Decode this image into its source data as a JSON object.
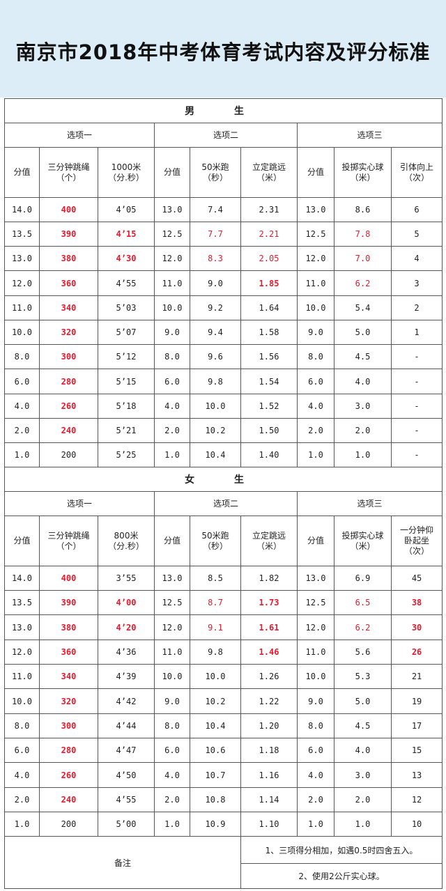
{
  "title": "南京市2018年中考体育考试内容及评分标准",
  "colors": {
    "header_bg": "#dcedf8",
    "highlight_red": "#e8192c"
  },
  "boys": {
    "section": "男 生",
    "options": [
      "选项一",
      "选项二",
      "选项三"
    ],
    "headers": [
      [
        "分值"
      ],
      [
        "三分钟跳绳",
        "（个）"
      ],
      [
        "1000米",
        "（分.秒）"
      ],
      [
        "分值"
      ],
      [
        "50米跑",
        "（秒）"
      ],
      [
        "立定跳远",
        "（米）"
      ],
      [
        "分值"
      ],
      [
        "投掷实心球",
        "（米）"
      ],
      [
        "引体向上",
        "（次）"
      ]
    ],
    "rows": [
      [
        "14.0",
        "400",
        "4’05",
        "13.0",
        "7.4",
        "2.31",
        "13.0",
        "8.6",
        "6"
      ],
      [
        "13.5",
        "390",
        "4’15",
        "12.5",
        "7.7",
        "2.21",
        "12.5",
        "7.8",
        "5"
      ],
      [
        "13.0",
        "380",
        "4’30",
        "12.0",
        "8.3",
        "2.05",
        "12.0",
        "7.0",
        "4"
      ],
      [
        "12.0",
        "360",
        "4’55",
        "11.0",
        "9.0",
        "1.85",
        "11.0",
        "6.2",
        "3"
      ],
      [
        "11.0",
        "340",
        "5’03",
        "10.0",
        "9.2",
        "1.64",
        "10.0",
        "5.4",
        "2"
      ],
      [
        "10.0",
        "320",
        "5’07",
        "9.0",
        "9.4",
        "1.58",
        "9.0",
        "5.0",
        "1"
      ],
      [
        "8.0",
        "300",
        "5’12",
        "8.0",
        "9.6",
        "1.56",
        "8.0",
        "4.5",
        "-"
      ],
      [
        "6.0",
        "280",
        "5’15",
        "6.0",
        "9.8",
        "1.54",
        "6.0",
        "4.0",
        "-"
      ],
      [
        "4.0",
        "260",
        "5’18",
        "4.0",
        "10.0",
        "1.52",
        "4.0",
        "3.0",
        "-"
      ],
      [
        "2.0",
        "240",
        "5’21",
        "2.0",
        "10.2",
        "1.50",
        "2.0",
        "2.0",
        "-"
      ],
      [
        "1.0",
        "200",
        "5’25",
        "1.0",
        "10.4",
        "1.40",
        "1.0",
        "1.0",
        "-"
      ]
    ],
    "red": [
      [
        0,
        1
      ],
      [
        1,
        1
      ],
      [
        2,
        1
      ],
      [
        3,
        1
      ],
      [
        4,
        1
      ],
      [
        5,
        1
      ],
      [
        6,
        1
      ],
      [
        7,
        1
      ],
      [
        8,
        1
      ],
      [
        9,
        1
      ],
      [
        1,
        2
      ],
      [
        2,
        2
      ],
      [
        1,
        4
      ],
      [
        2,
        4
      ],
      [
        1,
        5
      ],
      [
        2,
        5
      ],
      [
        3,
        5
      ],
      [
        1,
        7
      ],
      [
        2,
        7
      ],
      [
        3,
        7
      ]
    ],
    "bold": [
      [
        0,
        1
      ],
      [
        1,
        1
      ],
      [
        2,
        1
      ],
      [
        3,
        1
      ],
      [
        4,
        1
      ],
      [
        5,
        1
      ],
      [
        6,
        1
      ],
      [
        7,
        1
      ],
      [
        8,
        1
      ],
      [
        9,
        1
      ],
      [
        1,
        2
      ],
      [
        2,
        2
      ],
      [
        3,
        5
      ]
    ]
  },
  "girls": {
    "section": "女 生",
    "options": [
      "选项一",
      "选项二",
      "选项三"
    ],
    "headers": [
      [
        "分值"
      ],
      [
        "三分钟跳绳",
        "（个）"
      ],
      [
        "800米",
        "（分.秒）"
      ],
      [
        "分值"
      ],
      [
        "50米跑",
        "（秒）"
      ],
      [
        "立定跳远",
        "（米）"
      ],
      [
        "分值"
      ],
      [
        "投掷实心球",
        "（米）"
      ],
      [
        "一分钟仰",
        "卧起坐",
        "（次）"
      ]
    ],
    "rows": [
      [
        "14.0",
        "400",
        "3’55",
        "13.0",
        "8.5",
        "1.82",
        "13.0",
        "6.9",
        "45"
      ],
      [
        "13.5",
        "390",
        "4’00",
        "12.5",
        "8.7",
        "1.73",
        "12.5",
        "6.5",
        "38"
      ],
      [
        "13.0",
        "380",
        "4’20",
        "12.0",
        "9.1",
        "1.61",
        "12.0",
        "6.2",
        "30"
      ],
      [
        "12.0",
        "360",
        "4’36",
        "11.0",
        "9.8",
        "1.46",
        "11.0",
        "5.6",
        "26"
      ],
      [
        "11.0",
        "340",
        "4’39",
        "10.0",
        "10.0",
        "1.26",
        "10.0",
        "5.3",
        "21"
      ],
      [
        "10.0",
        "320",
        "4’42",
        "9.0",
        "10.2",
        "1.22",
        "9.0",
        "5.0",
        "19"
      ],
      [
        "8.0",
        "300",
        "4’44",
        "8.0",
        "10.4",
        "1.20",
        "8.0",
        "4.5",
        "17"
      ],
      [
        "6.0",
        "280",
        "4’47",
        "6.0",
        "10.6",
        "1.18",
        "6.0",
        "4.0",
        "15"
      ],
      [
        "4.0",
        "260",
        "4’50",
        "4.0",
        "10.7",
        "1.16",
        "4.0",
        "3.0",
        "13"
      ],
      [
        "2.0",
        "240",
        "4’55",
        "2.0",
        "10.8",
        "1.14",
        "2.0",
        "2.0",
        "12"
      ],
      [
        "1.0",
        "200",
        "5’00",
        "1.0",
        "10.9",
        "1.10",
        "1.0",
        "1.0",
        "10"
      ]
    ],
    "red": [
      [
        0,
        1
      ],
      [
        1,
        1
      ],
      [
        2,
        1
      ],
      [
        3,
        1
      ],
      [
        4,
        1
      ],
      [
        5,
        1
      ],
      [
        6,
        1
      ],
      [
        7,
        1
      ],
      [
        8,
        1
      ],
      [
        9,
        1
      ],
      [
        1,
        2
      ],
      [
        2,
        2
      ],
      [
        1,
        4
      ],
      [
        2,
        4
      ],
      [
        1,
        5
      ],
      [
        2,
        5
      ],
      [
        3,
        5
      ],
      [
        1,
        7
      ],
      [
        2,
        7
      ],
      [
        1,
        8
      ],
      [
        2,
        8
      ],
      [
        3,
        8
      ]
    ],
    "bold": [
      [
        0,
        1
      ],
      [
        1,
        1
      ],
      [
        2,
        1
      ],
      [
        3,
        1
      ],
      [
        4,
        1
      ],
      [
        5,
        1
      ],
      [
        6,
        1
      ],
      [
        7,
        1
      ],
      [
        8,
        1
      ],
      [
        9,
        1
      ],
      [
        1,
        2
      ],
      [
        2,
        2
      ],
      [
        1,
        5
      ],
      [
        2,
        5
      ],
      [
        3,
        5
      ],
      [
        1,
        8
      ],
      [
        2,
        8
      ],
      [
        3,
        8
      ]
    ]
  },
  "notes": {
    "label": "备注",
    "items": [
      "1、三项得分相加，如遇0.5时四舍五入。",
      "2、使用2公斤实心球。"
    ]
  }
}
